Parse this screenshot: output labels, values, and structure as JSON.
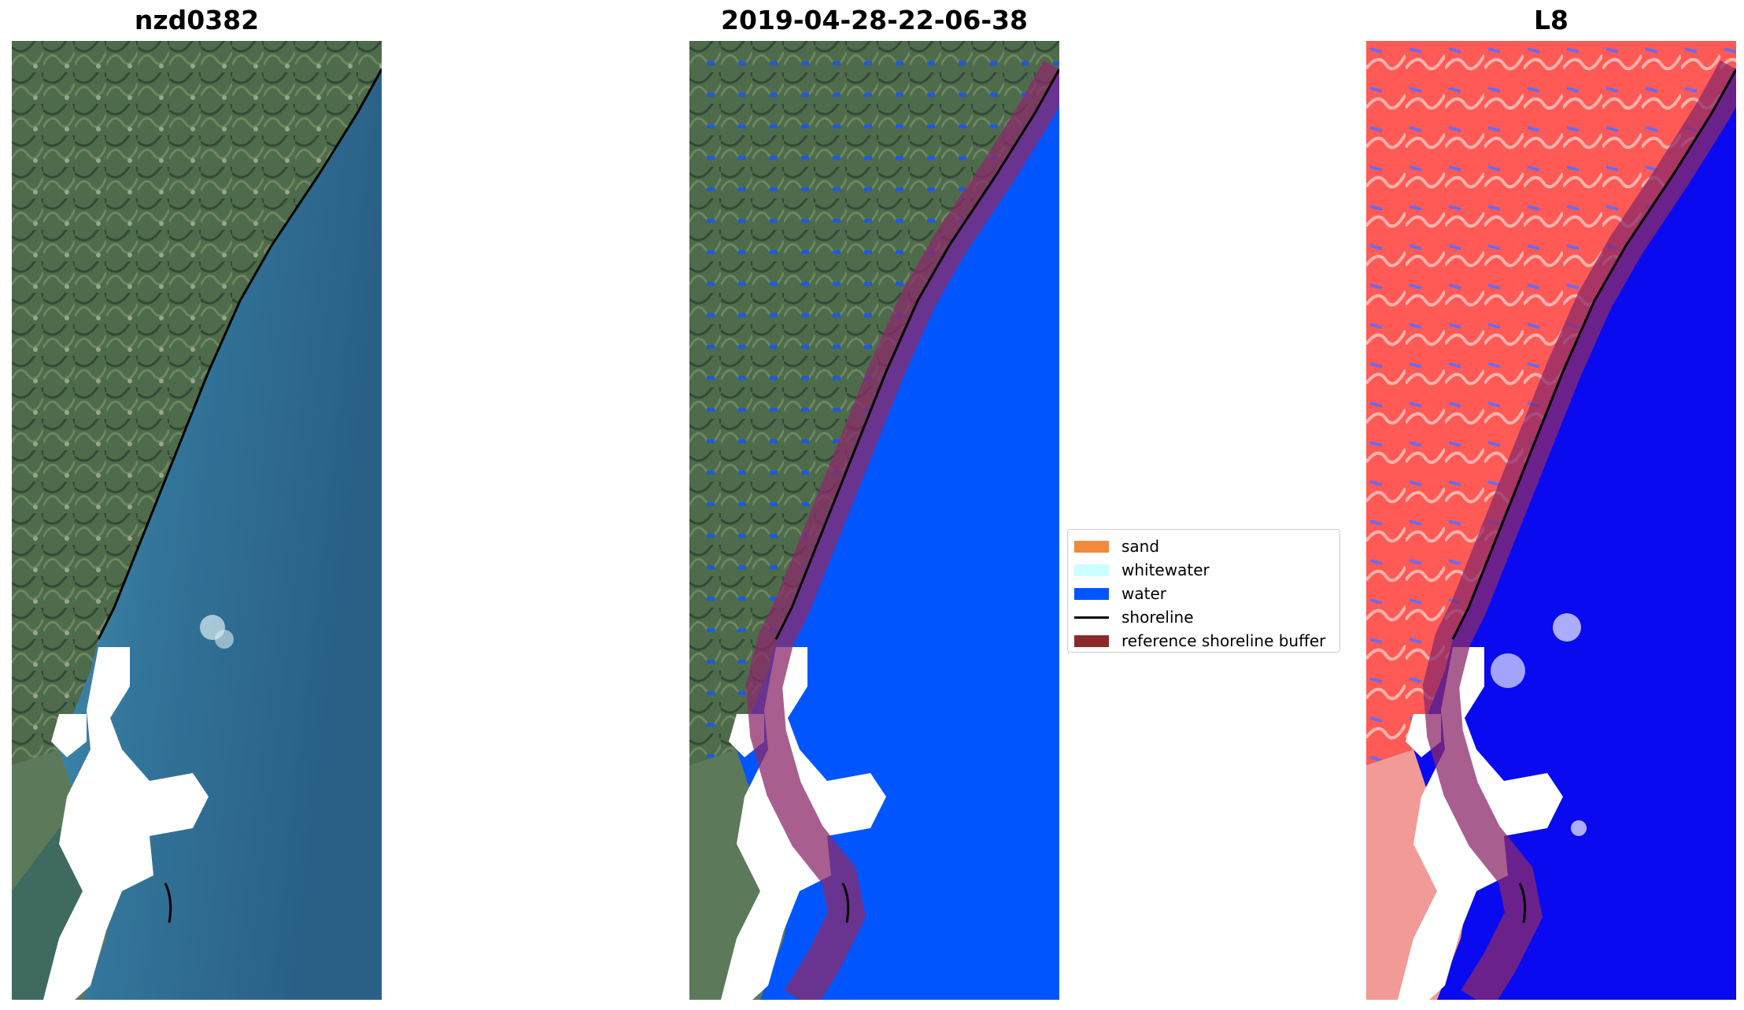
{
  "panels": [
    {
      "title": "nzd0382"
    },
    {
      "title": "2019-04-28-22-06-38"
    },
    {
      "title": "L8"
    }
  ],
  "legend": {
    "items": [
      {
        "label": "sand",
        "color": "#f28a3c",
        "kind": "patch"
      },
      {
        "label": "whitewater",
        "color": "#ccffff",
        "kind": "patch"
      },
      {
        "label": "water",
        "color": "#0055ff",
        "kind": "patch"
      },
      {
        "label": "shoreline",
        "color": "#000000",
        "kind": "line"
      },
      {
        "label": "reference shoreline buffer",
        "color": "#8b2a2a",
        "kind": "patch"
      }
    ]
  },
  "colors": {
    "land": "#4f6a4a",
    "sea_rgb": "#2f6a8f",
    "sea_near": "#4a95b5",
    "water_class": "#0055ff",
    "buffer": "#7d2a6a",
    "index_land": "#ff5a55",
    "index_water": "#0a0af0"
  }
}
